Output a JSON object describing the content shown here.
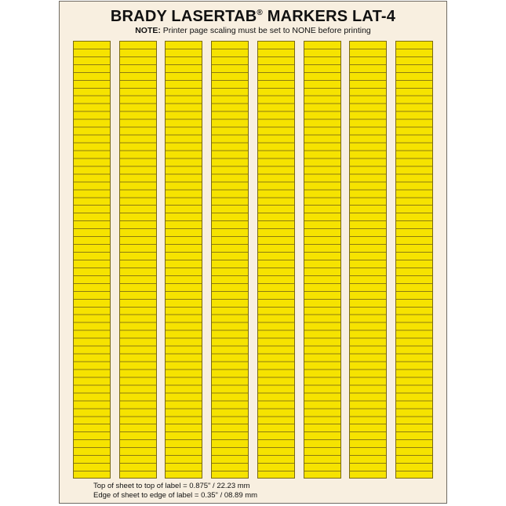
{
  "header": {
    "title_main": "BRADY LASERTAB",
    "title_reg": "®",
    "title_tail": " MARKERS LAT-4",
    "note_label": "NOTE:",
    "note_text": " Printer page scaling must be set to NONE before printing"
  },
  "label_sheet": {
    "column_count": 8,
    "rows_per_column": 56,
    "label_color": "#f6e300",
    "sheet_color": "#f8efe0"
  },
  "footer": {
    "line1": "Top of sheet to top of label = 0.875\" / 22.23 mm",
    "line2": "Edge of sheet to edge of label = 0.35\" / 08.89 mm"
  }
}
